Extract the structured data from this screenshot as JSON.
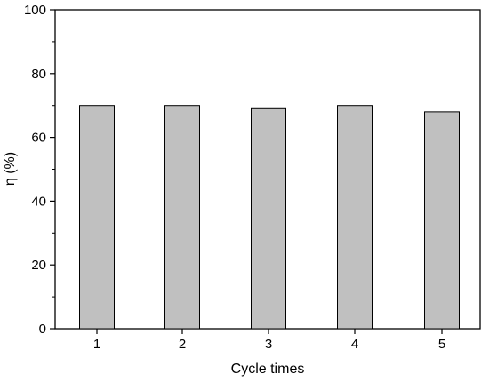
{
  "chart_data": {
    "type": "bar",
    "categories": [
      "1",
      "2",
      "3",
      "4",
      "5"
    ],
    "values": [
      70,
      70,
      69,
      70,
      68
    ],
    "xlabel": "Cycle times",
    "ylabel": "η (%)",
    "ylim": [
      0,
      100
    ],
    "yticks": [
      "0",
      "20",
      "40",
      "60",
      "80",
      "100"
    ],
    "grid": false,
    "legend": "none",
    "colors": {
      "bar_fill": "#c0c0c0",
      "bar_stroke": "#000000",
      "axis": "#000000"
    }
  }
}
